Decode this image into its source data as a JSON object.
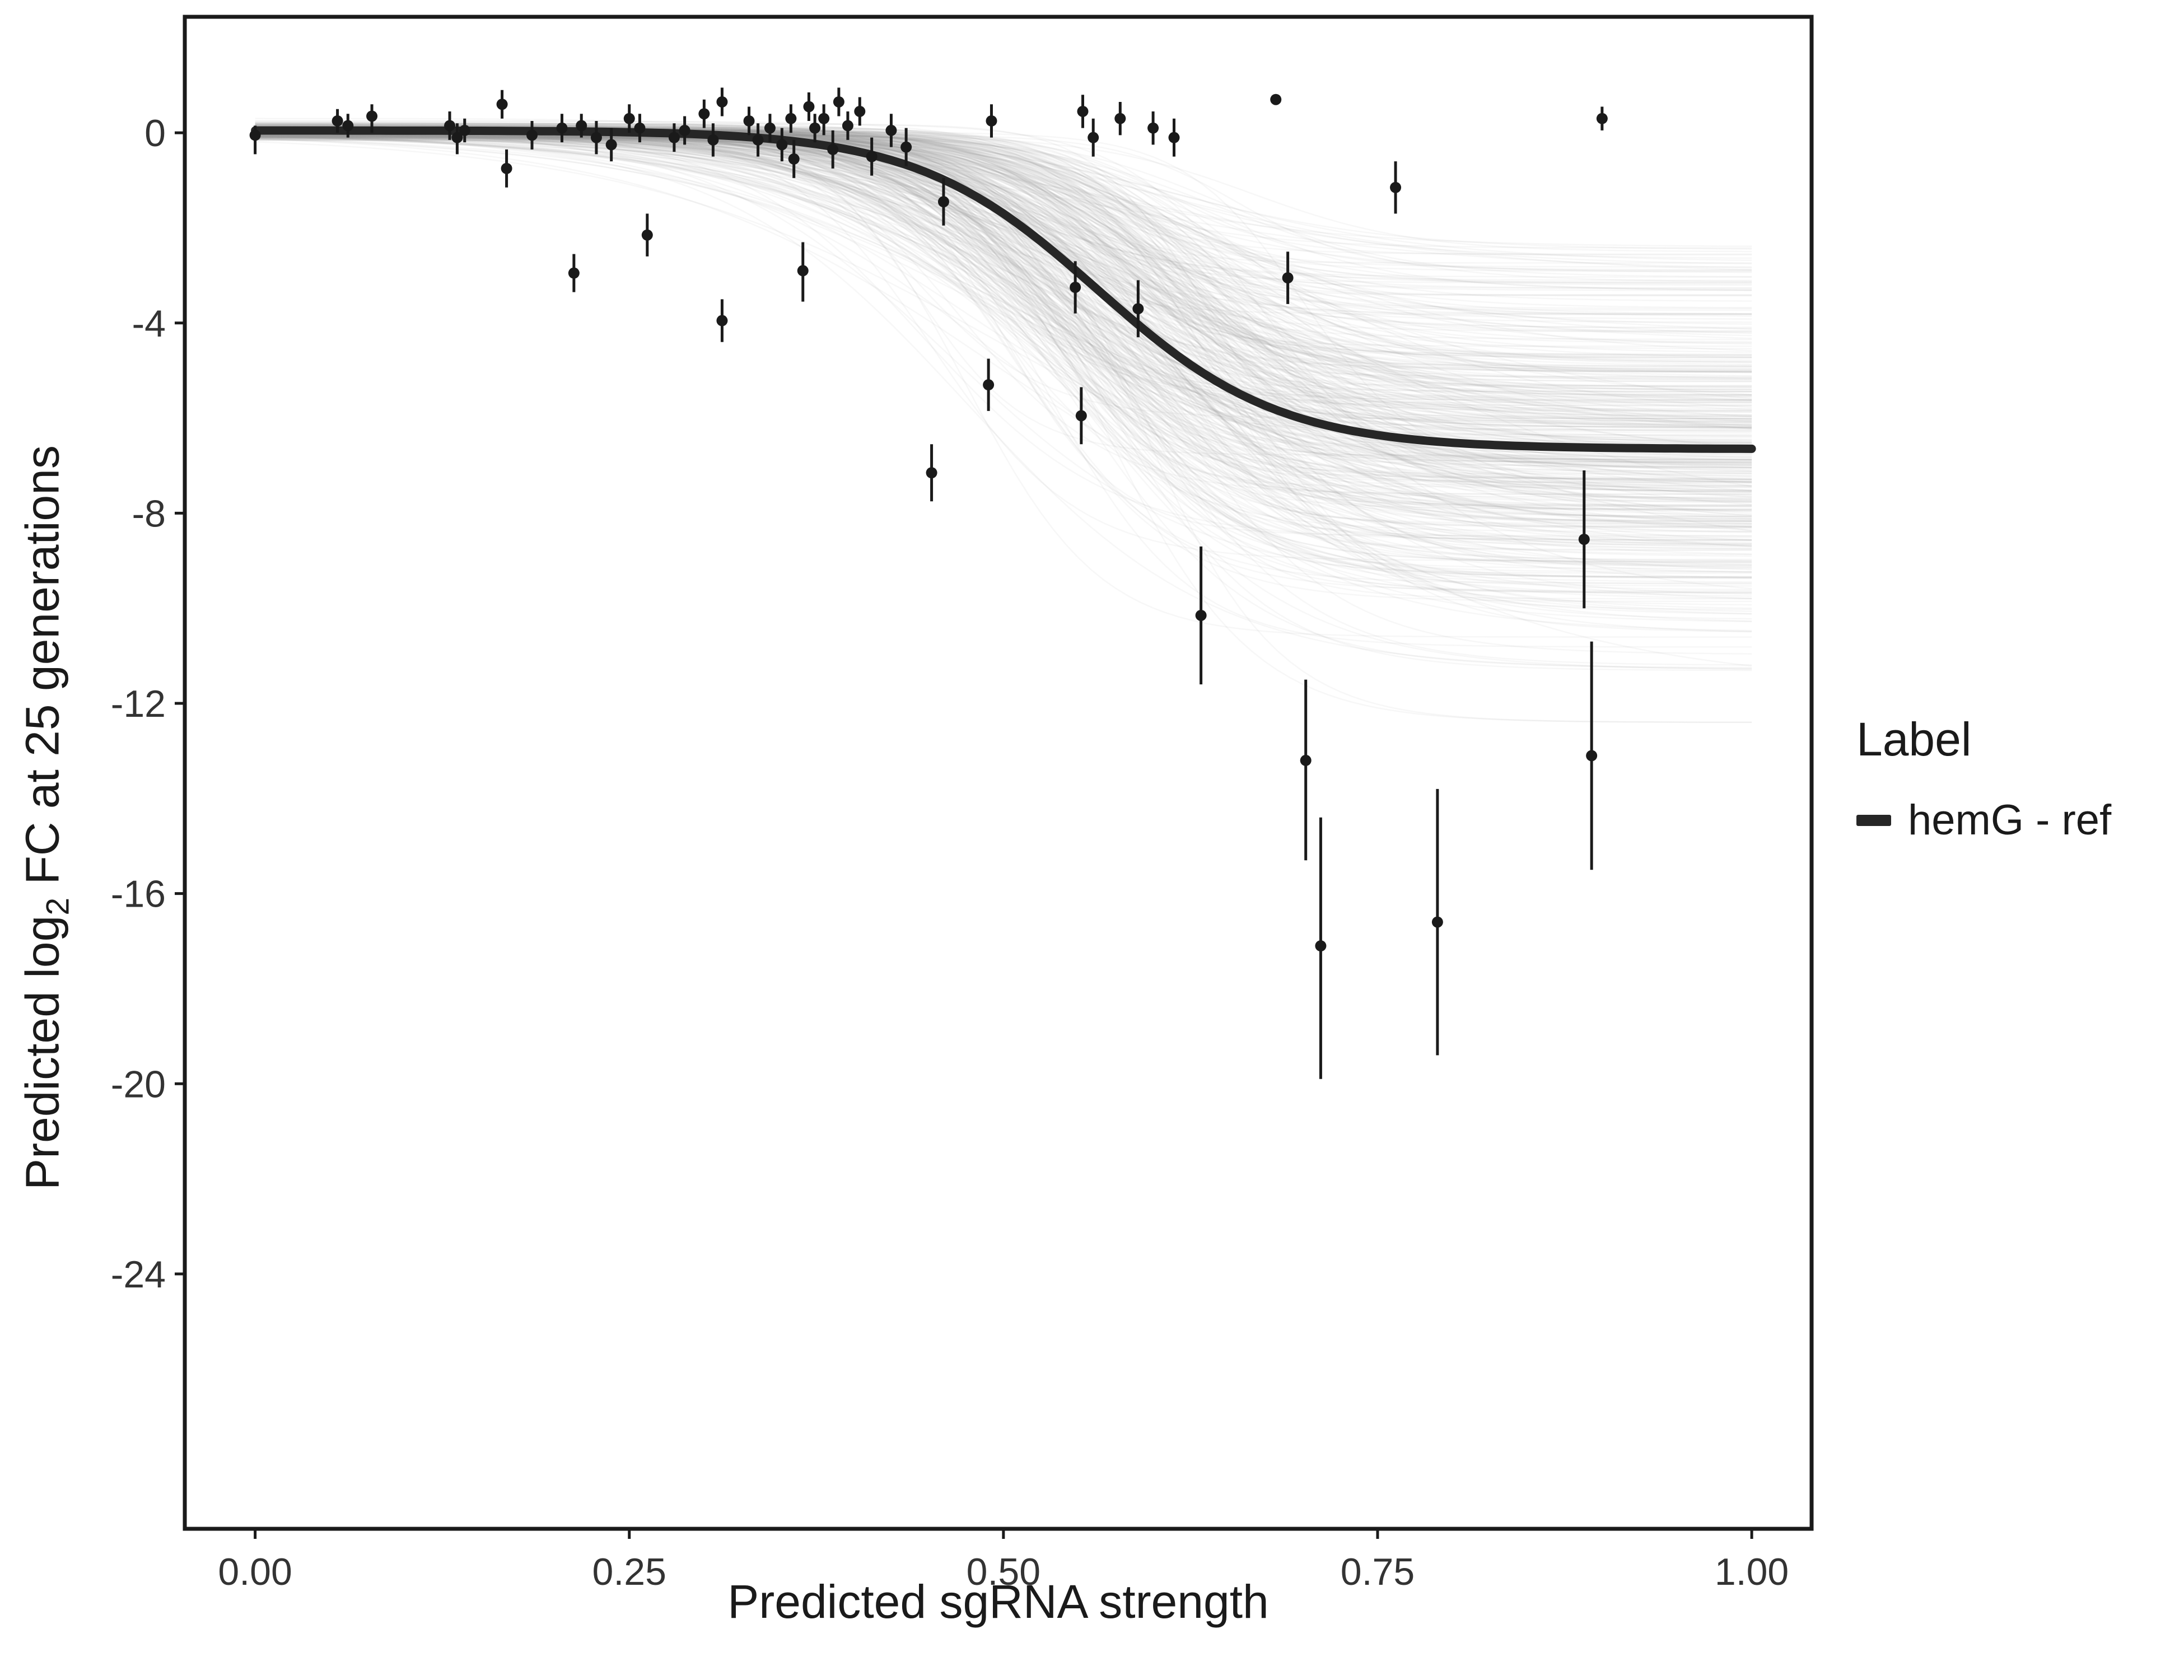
{
  "chart_data": {
    "type": "scatter",
    "title": "",
    "xlabel": "Predicted sgRNA strength",
    "ylabel_prefix": "Predicted  log",
    "ylabel_sub": "2",
    "ylabel_suffix": " FC at 25 generations",
    "grid": false,
    "xdomain": {
      "left": -0.047,
      "right": 1.04
    },
    "ydomain": {
      "top": 2.44,
      "bottom": -29.36
    },
    "xticks": [
      {
        "v": 0.0,
        "label": "0.00"
      },
      {
        "v": 0.25,
        "label": "0.25"
      },
      {
        "v": 0.5,
        "label": "0.50"
      },
      {
        "v": 0.75,
        "label": "0.75"
      },
      {
        "v": 1.0,
        "label": "1.00"
      }
    ],
    "yticks": [
      {
        "v": 0,
        "label": "0"
      },
      {
        "v": -4,
        "label": "-4"
      },
      {
        "v": -8,
        "label": "-8"
      },
      {
        "v": -12,
        "label": "-12"
      },
      {
        "v": -16,
        "label": "-16"
      },
      {
        "v": -20,
        "label": "-20"
      },
      {
        "v": -24,
        "label": "-24"
      }
    ],
    "legend": {
      "title": "Label",
      "position": "right",
      "entries": [
        {
          "label": "hemG - ref",
          "color": "#262626"
        }
      ]
    },
    "main_curve": {
      "name": "hemG - ref",
      "y0": 0.05,
      "ymin": -6.65,
      "x50": 0.563,
      "k": 16.5,
      "color": "#262626",
      "width": 15
    },
    "posterior": {
      "count": 450,
      "seed": 42,
      "y0_mean": 0.03,
      "y0_sd": 0.08,
      "ymin_mean": -6.9,
      "ymin_sd": 2.0,
      "ymin_min": -12.4,
      "ymin_max": -2.4,
      "x50_mean": 0.565,
      "x50_sd": 0.05,
      "k_mean": 17,
      "k_sd": 5,
      "k_min": 8,
      "k_max": 30,
      "color": "#9a9a9a",
      "opacity": 0.08,
      "width": 2.5
    },
    "point_color": "#1a1a1a",
    "point_radius": 10,
    "errorbar_width": 5,
    "points_format": [
      "x",
      "y",
      "ymin",
      "ymax"
    ],
    "points": [
      [
        0.0,
        -0.05,
        -0.45,
        0.15
      ],
      [
        0.055,
        0.25,
        0.0,
        0.5
      ],
      [
        0.062,
        0.15,
        -0.1,
        0.4
      ],
      [
        0.078,
        0.35,
        0.0,
        0.6
      ],
      [
        0.13,
        0.15,
        -0.15,
        0.45
      ],
      [
        0.135,
        -0.1,
        -0.45,
        0.2
      ],
      [
        0.14,
        0.05,
        -0.2,
        0.3
      ],
      [
        0.165,
        0.6,
        0.3,
        0.9
      ],
      [
        0.168,
        -0.75,
        -1.15,
        -0.35
      ],
      [
        0.185,
        -0.05,
        -0.35,
        0.25
      ],
      [
        0.205,
        0.1,
        -0.2,
        0.4
      ],
      [
        0.213,
        -2.95,
        -3.35,
        -2.55
      ],
      [
        0.218,
        0.15,
        -0.1,
        0.4
      ],
      [
        0.228,
        -0.1,
        -0.45,
        0.25
      ],
      [
        0.238,
        -0.25,
        -0.6,
        0.1
      ],
      [
        0.25,
        0.3,
        0.0,
        0.6
      ],
      [
        0.257,
        0.1,
        -0.2,
        0.4
      ],
      [
        0.262,
        -2.15,
        -2.6,
        -1.7
      ],
      [
        0.28,
        -0.1,
        -0.4,
        0.2
      ],
      [
        0.287,
        0.05,
        -0.25,
        0.35
      ],
      [
        0.3,
        0.4,
        0.1,
        0.7
      ],
      [
        0.306,
        -0.15,
        -0.5,
        0.2
      ],
      [
        0.312,
        0.65,
        0.35,
        0.95
      ],
      [
        0.312,
        -3.95,
        -4.4,
        -3.5
      ],
      [
        0.33,
        0.25,
        -0.05,
        0.55
      ],
      [
        0.336,
        -0.15,
        -0.5,
        0.2
      ],
      [
        0.344,
        0.1,
        -0.2,
        0.4
      ],
      [
        0.352,
        -0.25,
        -0.6,
        0.1
      ],
      [
        0.358,
        0.3,
        0.0,
        0.6
      ],
      [
        0.36,
        -0.55,
        -0.95,
        -0.15
      ],
      [
        0.366,
        -2.9,
        -3.55,
        -2.3
      ],
      [
        0.37,
        0.55,
        0.25,
        0.85
      ],
      [
        0.374,
        0.1,
        -0.2,
        0.4
      ],
      [
        0.38,
        0.3,
        -0.05,
        0.6
      ],
      [
        0.386,
        -0.35,
        -0.75,
        0.05
      ],
      [
        0.39,
        0.65,
        0.35,
        0.95
      ],
      [
        0.396,
        0.15,
        -0.15,
        0.45
      ],
      [
        0.404,
        0.45,
        0.15,
        0.75
      ],
      [
        0.412,
        -0.5,
        -0.9,
        -0.1
      ],
      [
        0.425,
        0.05,
        -0.3,
        0.4
      ],
      [
        0.435,
        -0.3,
        -0.7,
        0.1
      ],
      [
        0.452,
        -7.15,
        -7.75,
        -6.55
      ],
      [
        0.46,
        -1.45,
        -1.95,
        -0.95
      ],
      [
        0.49,
        -5.3,
        -5.85,
        -4.75
      ],
      [
        0.492,
        0.25,
        -0.1,
        0.6
      ],
      [
        0.548,
        -3.25,
        -3.8,
        -2.7
      ],
      [
        0.552,
        -5.95,
        -6.55,
        -5.35
      ],
      [
        0.553,
        0.45,
        0.1,
        0.8
      ],
      [
        0.56,
        -0.1,
        -0.5,
        0.3
      ],
      [
        0.578,
        0.3,
        -0.05,
        0.65
      ],
      [
        0.59,
        -3.7,
        -4.3,
        -3.1
      ],
      [
        0.6,
        0.1,
        -0.25,
        0.45
      ],
      [
        0.614,
        -0.1,
        -0.5,
        0.3
      ],
      [
        0.632,
        -10.15,
        -11.6,
        -8.7
      ],
      [
        0.682,
        0.7,
        0.7,
        0.7
      ],
      [
        0.69,
        -3.05,
        -3.6,
        -2.5
      ],
      [
        0.702,
        -13.2,
        -15.3,
        -11.5
      ],
      [
        0.712,
        -17.1,
        -19.9,
        -14.4
      ],
      [
        0.762,
        -1.15,
        -1.7,
        -0.6
      ],
      [
        0.79,
        -16.6,
        -19.4,
        -13.8
      ],
      [
        0.888,
        -8.55,
        -10.0,
        -7.1
      ],
      [
        0.893,
        -13.1,
        -15.5,
        -10.7
      ],
      [
        0.9,
        0.3,
        0.05,
        0.55
      ]
    ]
  }
}
